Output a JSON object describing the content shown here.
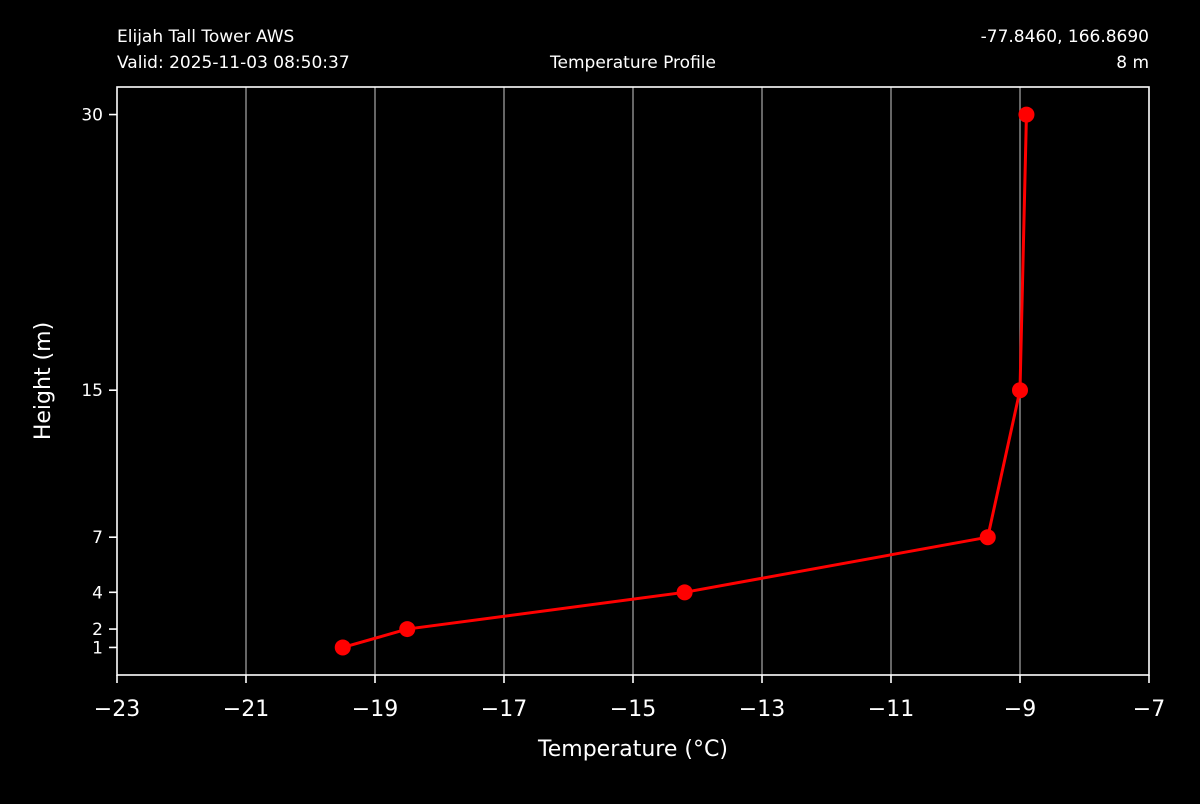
{
  "header": {
    "station_name": "Elijah Tall Tower AWS",
    "valid_time": "Valid: 2025-11-03 08:50:37",
    "plot_title": "Temperature Profile",
    "coordinates": "-77.8460, 166.8690",
    "elevation": "8 m"
  },
  "chart_data": {
    "type": "line",
    "title": "Temperature Profile",
    "xlabel": "Temperature ($^\\circ$C)",
    "xlabel_display": "Temperature (°C)",
    "ylabel": "Height (m)",
    "xlim": [
      -23,
      -7
    ],
    "ylim": [
      -0.5,
      31.5
    ],
    "xticks": [
      -23,
      -21,
      -19,
      -17,
      -15,
      -13,
      -11,
      -9,
      -7
    ],
    "xtick_labels": [
      "−23",
      "−21",
      "−19",
      "−17",
      "−15",
      "−13",
      "−11",
      "−9",
      "−7"
    ],
    "yticks": [
      1,
      2,
      4,
      7,
      15,
      30
    ],
    "ytick_labels": [
      "1",
      "2",
      "4",
      "7",
      "15",
      "30"
    ],
    "grid": "vertical",
    "series": [
      {
        "x": [
          -19.5,
          -18.5,
          -14.2,
          -9.5,
          -9.0,
          -8.9
        ],
        "y": [
          1,
          2,
          4,
          7,
          15,
          30
        ]
      }
    ]
  },
  "colors": {
    "background": "#000000",
    "foreground": "#ffffff",
    "series": "#ff0000",
    "grid": "#808080"
  }
}
